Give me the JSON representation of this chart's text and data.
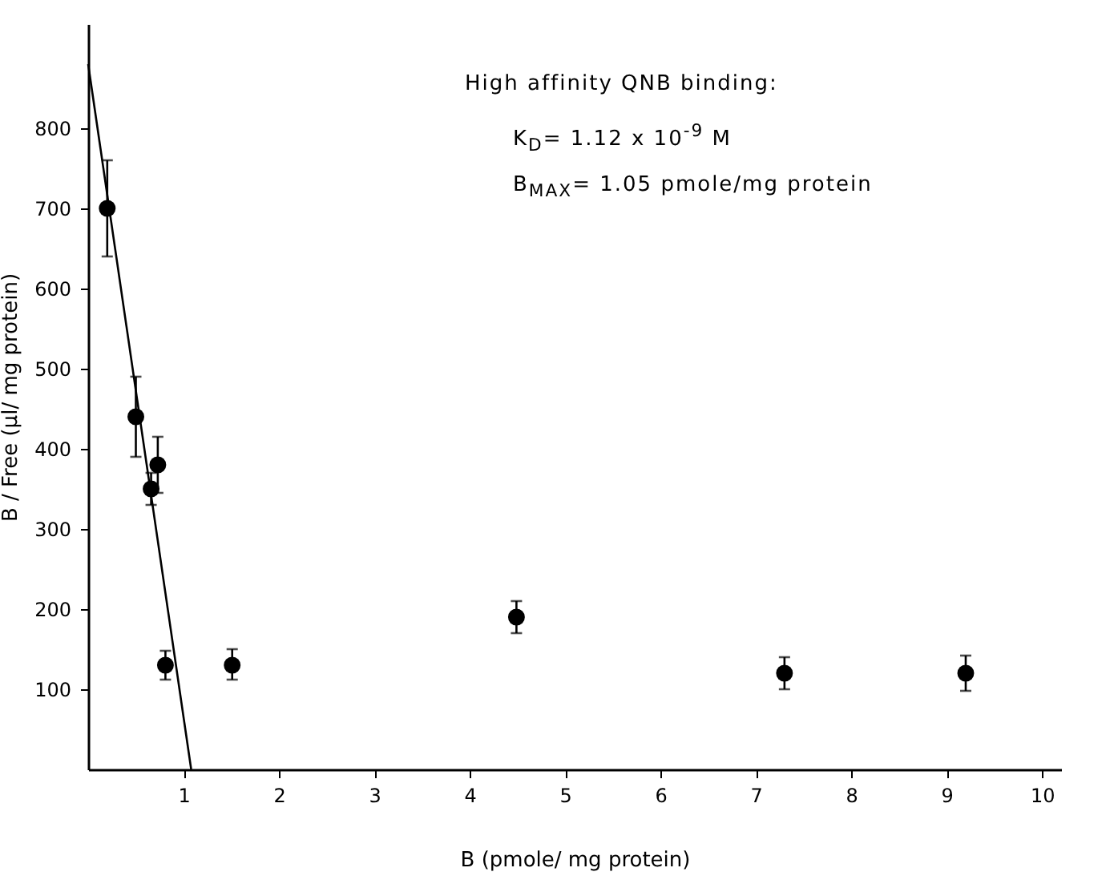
{
  "chart_data": {
    "type": "scatter",
    "xlabel": "B  (pmole/ mg protein)",
    "ylabel": "B / Free (μl/ mg protein)",
    "annotations": [
      "High affinity QNB binding:",
      "K$_{D}$= 1.12 x 10$^{-9}$ M",
      "B$_{MAX}$= 1.05 pmole/mg protein"
    ],
    "xlim": [
      0,
      10.2
    ],
    "ylim": [
      0,
      930
    ],
    "xticks": [
      1,
      2,
      3,
      4,
      5,
      6,
      7,
      8,
      9,
      10
    ],
    "yticks": [
      100,
      200,
      300,
      400,
      500,
      600,
      700,
      800
    ],
    "grid": false,
    "series": [
      {
        "marker": "circle",
        "color": "#000000",
        "x": [
          0.2,
          0.5,
          0.66,
          0.73,
          0.81,
          1.51,
          4.49,
          7.3,
          9.2
        ],
        "values": [
          700,
          440,
          350,
          380,
          130,
          130,
          190,
          120,
          120
        ],
        "errors": [
          [
            640,
            760
          ],
          [
            390,
            490
          ],
          [
            330,
            370
          ],
          [
            345,
            415
          ],
          [
            112,
            148
          ],
          [
            112,
            150
          ],
          [
            170,
            210
          ],
          [
            100,
            140
          ],
          [
            98,
            142
          ]
        ]
      },
      {
        "type": "line",
        "color": "#000000",
        "x": [
          0,
          1.08
        ],
        "values": [
          880,
          0
        ]
      }
    ]
  }
}
